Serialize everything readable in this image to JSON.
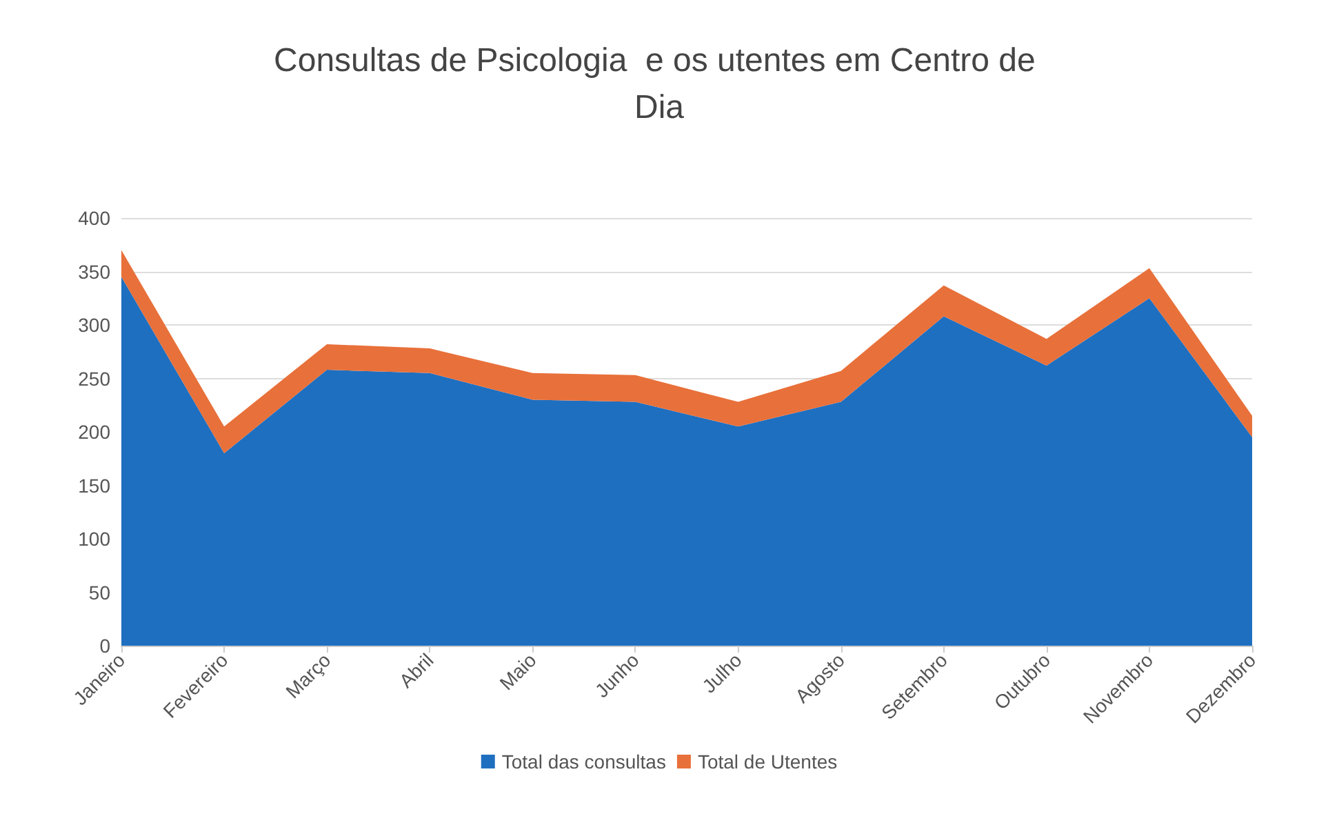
{
  "chart_data": {
    "type": "area",
    "title": "Consultas de Psicologia  e os utentes em Centro de Dia",
    "stacked": true,
    "categories": [
      "Janeiro",
      "Fevereiro",
      "Março",
      "Abril",
      "Maio",
      "Junho",
      "Julho",
      "Agosto",
      "Setembro",
      "Outubro",
      "Novembro",
      "Dezembro"
    ],
    "series": [
      {
        "name": "Total das consultas",
        "color": "#1f6fc0",
        "values": [
          345,
          180,
          258,
          255,
          230,
          228,
          205,
          228,
          308,
          262,
          325,
          195
        ]
      },
      {
        "name": "Total de Utentes",
        "color": "#e8703a",
        "values": [
          25,
          25,
          24,
          23,
          25,
          25,
          23,
          29,
          29,
          25,
          28,
          20
        ]
      }
    ],
    "ylim": [
      0,
      400
    ],
    "yticks": [
      0,
      50,
      100,
      150,
      200,
      250,
      300,
      350,
      400
    ],
    "grid": "y",
    "legend": "bottom"
  }
}
